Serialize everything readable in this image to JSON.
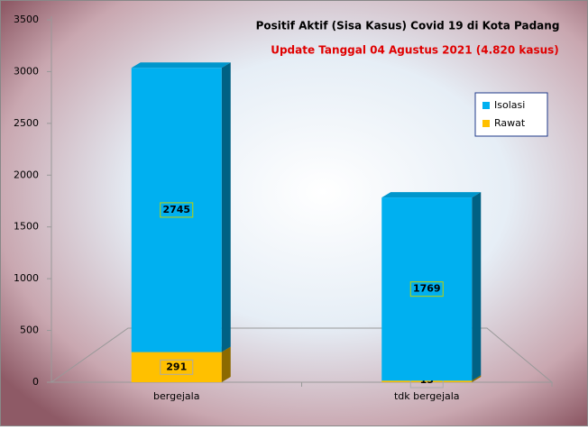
{
  "chart_data": {
    "type": "bar3d_stacked",
    "title": "Positif Aktif  (Sisa Kasus) Covid 19 di Kota Padang",
    "subtitle": "Update Tanggal  04 Agustus  2021 (4.820 kasus)",
    "categories": [
      "bergejala",
      "tdk bergejala"
    ],
    "series": [
      {
        "name": "Rawat",
        "color": "#ffc000",
        "values": [
          291,
          15
        ]
      },
      {
        "name": "Isolasi",
        "color": "#00b0f0",
        "values": [
          2745,
          1769
        ]
      }
    ],
    "ylim": [
      0,
      3500
    ],
    "yticks": [
      0,
      500,
      1000,
      1500,
      2000,
      2500,
      3000,
      3500
    ],
    "legend": "upper right"
  }
}
